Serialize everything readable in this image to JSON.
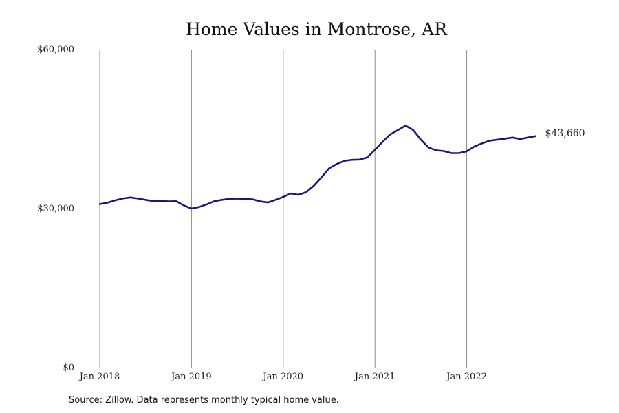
{
  "chart_data": {
    "type": "line",
    "title": "Home Values in Montrose, AR",
    "xlabel": "",
    "ylabel": "",
    "ylim": [
      0,
      60000
    ],
    "y_ticks": [
      {
        "value": 0,
        "label": "$0"
      },
      {
        "value": 30000,
        "label": "$30,000"
      },
      {
        "value": 60000,
        "label": "$60,000"
      }
    ],
    "x_ticks": [
      {
        "value": "2018-01",
        "label": "Jan 2018"
      },
      {
        "value": "2019-01",
        "label": "Jan 2019"
      },
      {
        "value": "2020-01",
        "label": "Jan 2020"
      },
      {
        "value": "2021-01",
        "label": "Jan 2021"
      },
      {
        "value": "2022-01",
        "label": "Jan 2022"
      }
    ],
    "grid": {
      "vertical": true,
      "horizontal": false
    },
    "x": [
      "2018-01",
      "2018-02",
      "2018-03",
      "2018-04",
      "2018-05",
      "2018-06",
      "2018-07",
      "2018-08",
      "2018-09",
      "2018-10",
      "2018-11",
      "2018-12",
      "2019-01",
      "2019-02",
      "2019-03",
      "2019-04",
      "2019-05",
      "2019-06",
      "2019-07",
      "2019-08",
      "2019-09",
      "2019-10",
      "2019-11",
      "2019-12",
      "2020-01",
      "2020-02",
      "2020-03",
      "2020-04",
      "2020-05",
      "2020-06",
      "2020-07",
      "2020-08",
      "2020-09",
      "2020-10",
      "2020-11",
      "2020-12",
      "2021-01",
      "2021-02",
      "2021-03",
      "2021-04",
      "2021-05",
      "2021-06",
      "2021-07",
      "2021-08",
      "2021-09",
      "2021-10",
      "2021-11",
      "2021-12",
      "2022-01",
      "2022-02",
      "2022-03",
      "2022-04",
      "2022-05",
      "2022-06",
      "2022-07",
      "2022-08",
      "2022-09",
      "2022-10"
    ],
    "series": [
      {
        "values": [
          30850,
          31100,
          31550,
          31900,
          32100,
          31900,
          31650,
          31400,
          31450,
          31350,
          31400,
          30600,
          30000,
          30300,
          30800,
          31400,
          31650,
          31850,
          31900,
          31800,
          31750,
          31350,
          31150,
          31650,
          32200,
          32850,
          32600,
          33100,
          34300,
          35900,
          37600,
          38400,
          39000,
          39200,
          39250,
          39650,
          41100,
          42600,
          44000,
          44800,
          45650,
          44800,
          43000,
          41500,
          41000,
          40850,
          40450,
          40450,
          40800,
          41700,
          42300,
          42800,
          43000,
          43200,
          43400,
          43100,
          43400,
          43660
        ]
      }
    ],
    "end_label": "$43,660",
    "note": "Source: Zillow. Data represents monthly typical home value.",
    "colors": {
      "line": "#1c1872",
      "grid": "#8a8a8a"
    }
  }
}
